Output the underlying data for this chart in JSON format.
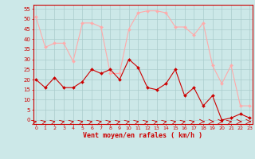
{
  "x": [
    0,
    1,
    2,
    3,
    4,
    5,
    6,
    7,
    8,
    9,
    10,
    11,
    12,
    13,
    14,
    15,
    16,
    17,
    18,
    19,
    20,
    21,
    22,
    23
  ],
  "avg_wind": [
    20,
    16,
    21,
    16,
    16,
    19,
    25,
    23,
    25,
    20,
    30,
    26,
    16,
    15,
    18,
    25,
    12,
    16,
    7,
    12,
    0,
    1,
    3,
    1
  ],
  "gust_wind": [
    51,
    36,
    38,
    38,
    29,
    48,
    48,
    46,
    23,
    23,
    45,
    53,
    54,
    54,
    53,
    46,
    46,
    42,
    48,
    27,
    18,
    27,
    7,
    7
  ],
  "wind_dirs": [
    45,
    45,
    45,
    45,
    45,
    45,
    45,
    45,
    45,
    45,
    45,
    45,
    45,
    45,
    45,
    45,
    45,
    45,
    0,
    0,
    0,
    45,
    0,
    0
  ],
  "xlabel": "Vent moyen/en rafales ( km/h )",
  "yticks": [
    0,
    5,
    10,
    15,
    20,
    25,
    30,
    35,
    40,
    45,
    50,
    55
  ],
  "ylim": [
    -2,
    57
  ],
  "xlim": [
    -0.3,
    23.3
  ],
  "bg_color": "#cce8e8",
  "grid_color": "#aacccc",
  "avg_color": "#cc0000",
  "gust_color": "#ffaaaa",
  "arrow_color": "#cc0000",
  "xlabel_color": "#cc0000",
  "tick_color": "#cc0000",
  "axis_color": "#cc0000",
  "spine_color": "#cc0000"
}
